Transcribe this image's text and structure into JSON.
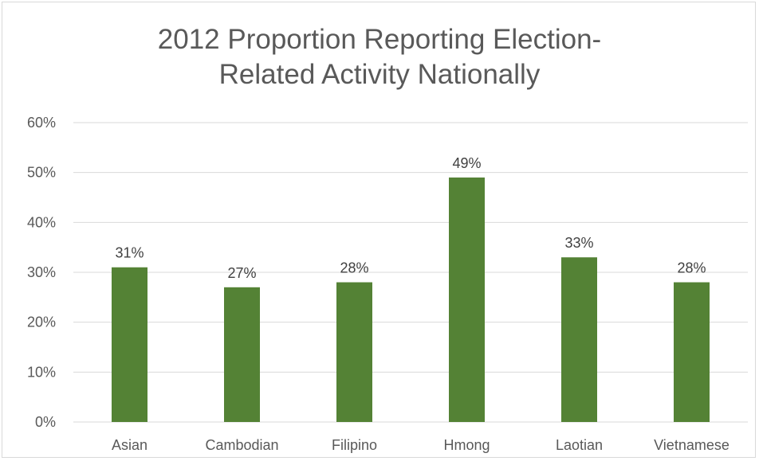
{
  "chart_data": {
    "type": "bar",
    "title_line1": "2012 Proportion Reporting Election-",
    "title_line2": "Related Activity Nationally",
    "categories": [
      "Asian",
      "Cambodian",
      "Filipino",
      "Hmong",
      "Laotian",
      "Vietnamese"
    ],
    "values": [
      31,
      27,
      28,
      49,
      33,
      28
    ],
    "data_labels": [
      "31%",
      "27%",
      "28%",
      "49%",
      "33%",
      "28%"
    ],
    "y_ticks": [
      "0%",
      "10%",
      "20%",
      "30%",
      "40%",
      "50%",
      "60%"
    ],
    "ylim": [
      0,
      60
    ],
    "grid": true,
    "bar_color": "#548235",
    "gridline_color": "#d9d9d9"
  }
}
